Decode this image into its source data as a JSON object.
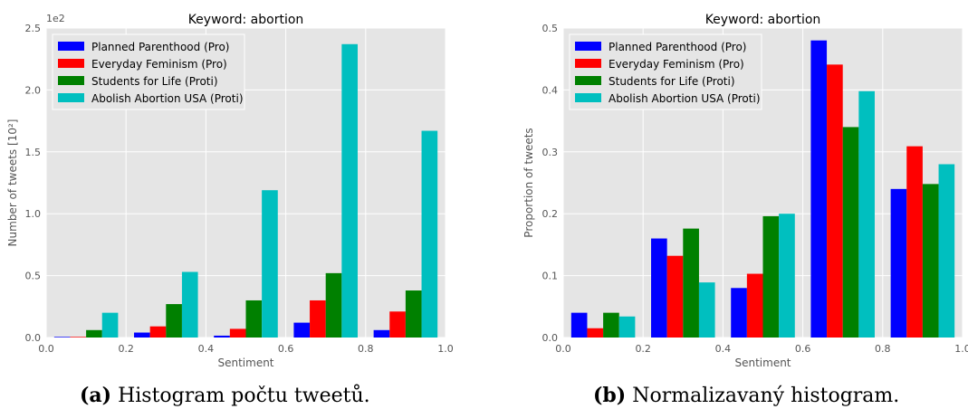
{
  "chart_data": [
    {
      "type": "bar",
      "title": "Keyword: abortion",
      "xlabel": "Sentiment",
      "ylabel": "Number of tweets [10²]",
      "offset_text": "1e2",
      "xlim": [
        0.0,
        1.0
      ],
      "ylim": [
        0,
        2.5
      ],
      "xticks": [
        "0.0",
        "0.2",
        "0.4",
        "0.6",
        "0.8",
        "1.0"
      ],
      "yticks": [
        "0.0",
        "0.5",
        "1.0",
        "1.5",
        "2.0",
        "2.5"
      ],
      "bins": [
        0.0,
        0.2,
        0.4,
        0.6,
        0.8
      ],
      "grid": true,
      "legend_position": "top-left",
      "series": [
        {
          "name": "Planned Parenthood (Pro)",
          "color": "#0000ff",
          "values": [
            0.005,
            0.04,
            0.015,
            0.12,
            0.06
          ]
        },
        {
          "name": "Everyday Feminism (Pro)",
          "color": "#ff0000",
          "values": [
            0.005,
            0.09,
            0.07,
            0.3,
            0.21
          ]
        },
        {
          "name": "Students for Life (Proti)",
          "color": "#008000",
          "values": [
            0.06,
            0.27,
            0.3,
            0.52,
            0.38
          ]
        },
        {
          "name": "Abolish Abortion USA (Proti)",
          "color": "#00bfbf",
          "values": [
            0.2,
            0.53,
            1.19,
            2.37,
            1.67
          ]
        }
      ]
    },
    {
      "type": "bar",
      "title": "Keyword: abortion",
      "xlabel": "Sentiment",
      "ylabel": "Proportion of tweets",
      "xlim": [
        0.0,
        1.0
      ],
      "ylim": [
        0,
        0.5
      ],
      "xticks": [
        "0.0",
        "0.2",
        "0.4",
        "0.6",
        "0.8",
        "1.0"
      ],
      "yticks": [
        "0.0",
        "0.1",
        "0.2",
        "0.3",
        "0.4",
        "0.5"
      ],
      "bins": [
        0.0,
        0.2,
        0.4,
        0.6,
        0.8
      ],
      "grid": true,
      "legend_position": "top-left",
      "series": [
        {
          "name": "Planned Parenthood (Pro)",
          "color": "#0000ff",
          "values": [
            0.04,
            0.16,
            0.08,
            0.48,
            0.24
          ]
        },
        {
          "name": "Everyday Feminism (Pro)",
          "color": "#ff0000",
          "values": [
            0.015,
            0.132,
            0.103,
            0.441,
            0.309
          ]
        },
        {
          "name": "Students for Life (Proti)",
          "color": "#008000",
          "values": [
            0.04,
            0.176,
            0.196,
            0.34,
            0.248
          ]
        },
        {
          "name": "Abolish Abortion USA (Proti)",
          "color": "#00bfbf",
          "values": [
            0.034,
            0.089,
            0.2,
            0.398,
            0.28
          ]
        }
      ]
    }
  ],
  "captions": [
    {
      "label": "(a)",
      "text": "Histogram počtu tweetů."
    },
    {
      "label": "(b)",
      "text": "Normalizavaný histogram."
    }
  ]
}
